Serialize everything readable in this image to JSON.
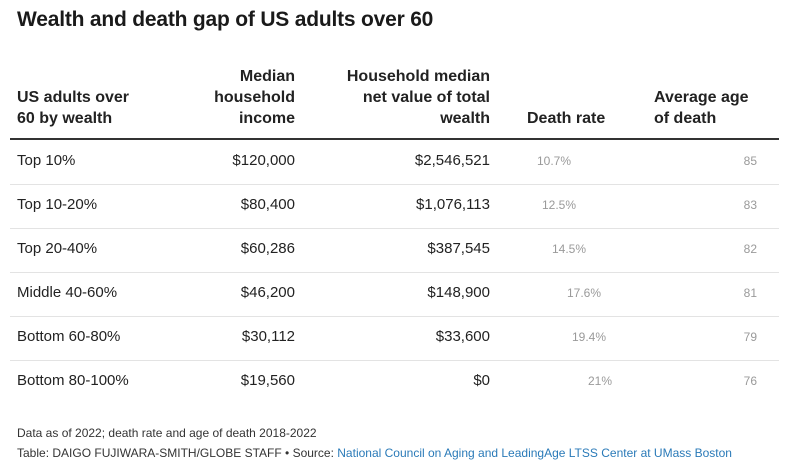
{
  "title": "Wealth and death gap of US adults over 60",
  "headers": {
    "group": "US adults over\n60 by wealth",
    "income": "Median\nhousehold\nincome",
    "net": "Household median\nnet value of total\nwealth",
    "death_rate": "Death rate",
    "age": "Average age\nof death"
  },
  "rows": [
    {
      "group": "Top 10%",
      "income": "$120,000",
      "net": "$2,546,521",
      "death_rate": "10.7%",
      "age": "85"
    },
    {
      "group": "Top 10-20%",
      "income": "$80,400",
      "net": "$1,076,113",
      "death_rate": "12.5%",
      "age": "83"
    },
    {
      "group": "Top 20-40%",
      "income": "$60,286",
      "net": "$387,545",
      "death_rate": "14.5%",
      "age": "82"
    },
    {
      "group": "Middle 40-60%",
      "income": "$46,200",
      "net": "$148,900",
      "death_rate": "17.6%",
      "age": "81"
    },
    {
      "group": "Bottom 60-80%",
      "income": "$30,112",
      "net": "$33,600",
      "death_rate": "19.4%",
      "age": "79"
    },
    {
      "group": "Bottom 80-100%",
      "income": "$19,560",
      "net": "$0",
      "death_rate": "21%",
      "age": "76"
    }
  ],
  "footnote": "Data as of 2022; death rate and age of death 2018-2022",
  "credit": {
    "prefix": "Table: DAIGO FUJIWARA-SMITH/GLOBE STAFF  •  Source: ",
    "source": "National Council on Aging and LeadingAge LTSS Center at UMass Boston"
  },
  "colors": {
    "source_link": "#2a7ab8",
    "muted_text": "#9a9a9a",
    "rule": "#333333"
  },
  "chart_data": {
    "type": "table",
    "title": "Wealth and death gap of US adults over 60",
    "columns": [
      "US adults over 60 by wealth",
      "Median household income",
      "Household median net value of total wealth",
      "Death rate",
      "Average age of death"
    ],
    "rows": [
      [
        "Top 10%",
        120000,
        2546521,
        10.7,
        85
      ],
      [
        "Top 10-20%",
        80400,
        1076113,
        12.5,
        83
      ],
      [
        "Top 20-40%",
        60286,
        387545,
        14.5,
        82
      ],
      [
        "Middle 40-60%",
        46200,
        148900,
        17.6,
        81
      ],
      [
        "Bottom 60-80%",
        30112,
        33600,
        19.4,
        79
      ],
      [
        "Bottom 80-100%",
        19560,
        0,
        21,
        76
      ]
    ]
  }
}
